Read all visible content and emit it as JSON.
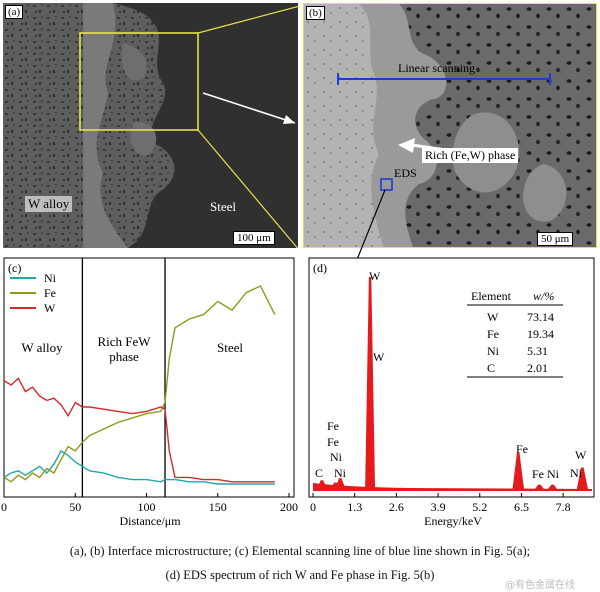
{
  "panel_a": {
    "tag": "(a)",
    "w_alloy_label": "W alloy",
    "steel_label": "Steel",
    "scale": "100 μm"
  },
  "panel_b": {
    "tag": "(b)",
    "linear_label": "Linear scanning",
    "rich_label": "Rich (Fe,W) phase",
    "eds_label": "EDS",
    "scale": "50 μm"
  },
  "chart_data": [
    {
      "type": "line",
      "panel": "(c)",
      "xlabel": "Distance/μm",
      "xlim": [
        0,
        200
      ],
      "x_ticks": [
        "0",
        "50",
        "100",
        "150",
        "200"
      ],
      "regions": [
        "W alloy",
        "Rich FeW phase",
        "Steel"
      ],
      "boundaries_x": [
        55,
        113
      ],
      "series": [
        {
          "name": "Ni",
          "color": "#21a7a9",
          "x": [
            0,
            5,
            10,
            15,
            20,
            25,
            30,
            35,
            40,
            45,
            50,
            55,
            60,
            70,
            80,
            90,
            100,
            110,
            113,
            120,
            130,
            140,
            150,
            160,
            170,
            180,
            190
          ],
          "y": [
            0.08,
            0.1,
            0.11,
            0.09,
            0.11,
            0.13,
            0.1,
            0.14,
            0.2,
            0.18,
            0.15,
            0.13,
            0.11,
            0.1,
            0.08,
            0.07,
            0.07,
            0.06,
            0.07,
            0.07,
            0.06,
            0.06,
            0.05,
            0.05,
            0.05,
            0.05,
            0.05
          ]
        },
        {
          "name": "Fe",
          "color": "#8f9a1b",
          "x": [
            0,
            5,
            10,
            15,
            20,
            25,
            30,
            35,
            40,
            45,
            50,
            55,
            60,
            70,
            80,
            90,
            100,
            110,
            113,
            116,
            120,
            130,
            140,
            150,
            160,
            170,
            180,
            190
          ],
          "y": [
            0.08,
            0.06,
            0.09,
            0.07,
            0.1,
            0.08,
            0.12,
            0.1,
            0.16,
            0.22,
            0.2,
            0.24,
            0.27,
            0.3,
            0.33,
            0.35,
            0.37,
            0.38,
            0.42,
            0.62,
            0.76,
            0.8,
            0.82,
            0.88,
            0.84,
            0.92,
            0.95,
            0.82
          ]
        },
        {
          "name": "W",
          "color": "#d32a2a",
          "x": [
            0,
            5,
            10,
            15,
            20,
            25,
            30,
            35,
            40,
            45,
            50,
            55,
            60,
            70,
            80,
            90,
            100,
            110,
            113,
            116,
            120,
            130,
            140,
            150,
            160,
            170,
            180,
            190
          ],
          "y": [
            0.52,
            0.5,
            0.53,
            0.47,
            0.49,
            0.45,
            0.43,
            0.44,
            0.41,
            0.36,
            0.42,
            0.4,
            0.4,
            0.39,
            0.38,
            0.37,
            0.38,
            0.4,
            0.39,
            0.2,
            0.08,
            0.08,
            0.07,
            0.07,
            0.06,
            0.06,
            0.06,
            0.06
          ]
        }
      ]
    },
    {
      "type": "bar",
      "panel": "(d)",
      "xlabel": "Energy/keV",
      "xlim": [
        0,
        8.7
      ],
      "x_ticks": [
        "0",
        "1.3",
        "2.6",
        "3.9",
        "5.2",
        "6.5",
        "7.8"
      ],
      "peaks": [
        {
          "energy": 0.28,
          "height": 0.05,
          "label": "C"
        },
        {
          "energy": 0.7,
          "height": 0.04,
          "label": "Fe"
        },
        {
          "energy": 0.85,
          "height": 0.06,
          "label": "Ni"
        },
        {
          "energy": 1.78,
          "height": 1.0,
          "label": "W"
        },
        {
          "energy": 6.4,
          "height": 0.18,
          "label": "Fe"
        },
        {
          "energy": 7.06,
          "height": 0.03,
          "label": "Fe"
        },
        {
          "energy": 7.47,
          "height": 0.03,
          "label": "Ni"
        },
        {
          "energy": 8.4,
          "height": 0.11,
          "label": "W"
        }
      ],
      "peak_labels": {
        "top_w": "W",
        "mid_w": "W",
        "low_fe1": "Fe",
        "low_fe2": "Fe",
        "low_ni": "Ni",
        "low_c": "C",
        "low_ni2": "Ni",
        "fe_65": "Fe",
        "fe_7": "Fe",
        "ni_75": "Ni",
        "w_84": "W",
        "ni_84": "Ni"
      },
      "table": {
        "headers": [
          "Element",
          "w/%"
        ],
        "rows": [
          [
            "W",
            "73.14"
          ],
          [
            "Fe",
            "19.34"
          ],
          [
            "Ni",
            "5.31"
          ],
          [
            "C",
            "2.01"
          ]
        ]
      }
    }
  ],
  "captions": {
    "line1": "(a), (b) Interface microstructure; (c) Elemental scanning line of blue line shown in Fig. 5(a);",
    "line2": "(d) EDS spectrum of rich W and Fe phase in Fig. 5(b)"
  },
  "watermark": "@有色金属在线"
}
